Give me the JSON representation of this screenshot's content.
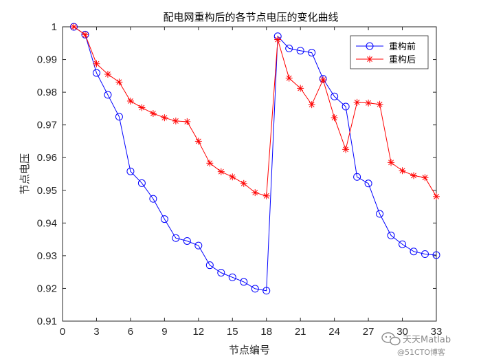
{
  "chart_data": {
    "type": "line",
    "title": "配电网重构后的各节点电压的变化曲线",
    "xlabel": "节点编号",
    "ylabel": "节点电压",
    "xlim": [
      0,
      33
    ],
    "ylim": [
      0.91,
      1
    ],
    "xticks": [
      0,
      3,
      6,
      9,
      12,
      15,
      18,
      21,
      24,
      27,
      30,
      33
    ],
    "yticks": [
      0.91,
      0.92,
      0.93,
      0.94,
      0.95,
      0.96,
      0.97,
      0.98,
      0.99,
      1
    ],
    "ytick_labels": [
      "0.91",
      "0.92",
      "0.93",
      "0.94",
      "0.95",
      "0.96",
      "0.97",
      "0.98",
      "0.99",
      "1"
    ],
    "grid": false,
    "legend_position": "top-right",
    "x": [
      1,
      2,
      3,
      4,
      5,
      6,
      7,
      8,
      9,
      10,
      11,
      12,
      13,
      14,
      15,
      16,
      17,
      18,
      19,
      20,
      21,
      22,
      23,
      24,
      25,
      26,
      27,
      28,
      29,
      30,
      31,
      32,
      33
    ],
    "series": [
      {
        "name": "重构前",
        "color": "#0000ff",
        "marker": "circle",
        "values": [
          1.0,
          0.9976,
          0.9859,
          0.9792,
          0.9725,
          0.9558,
          0.9522,
          0.9474,
          0.9412,
          0.9354,
          0.9345,
          0.9331,
          0.9271,
          0.9248,
          0.9234,
          0.922,
          0.9199,
          0.9193,
          0.9971,
          0.9934,
          0.9927,
          0.9921,
          0.9841,
          0.9787,
          0.9756,
          0.9541,
          0.9521,
          0.9428,
          0.9362,
          0.9335,
          0.9313,
          0.9305,
          0.9302
        ]
      },
      {
        "name": "重构后",
        "color": "#ff0000",
        "marker": "asterisk",
        "values": [
          1.0,
          0.9976,
          0.9887,
          0.9855,
          0.9831,
          0.9773,
          0.9753,
          0.9735,
          0.9722,
          0.9712,
          0.971,
          0.965,
          0.9583,
          0.9557,
          0.9541,
          0.9521,
          0.9493,
          0.9483,
          0.9961,
          0.9843,
          0.9812,
          0.9762,
          0.9838,
          0.9722,
          0.9625,
          0.9769,
          0.9767,
          0.9763,
          0.9585,
          0.956,
          0.9545,
          0.9539,
          0.9481
        ]
      }
    ]
  },
  "watermark": {
    "brand": "天天Matlab",
    "site": "@51CTO博客"
  }
}
